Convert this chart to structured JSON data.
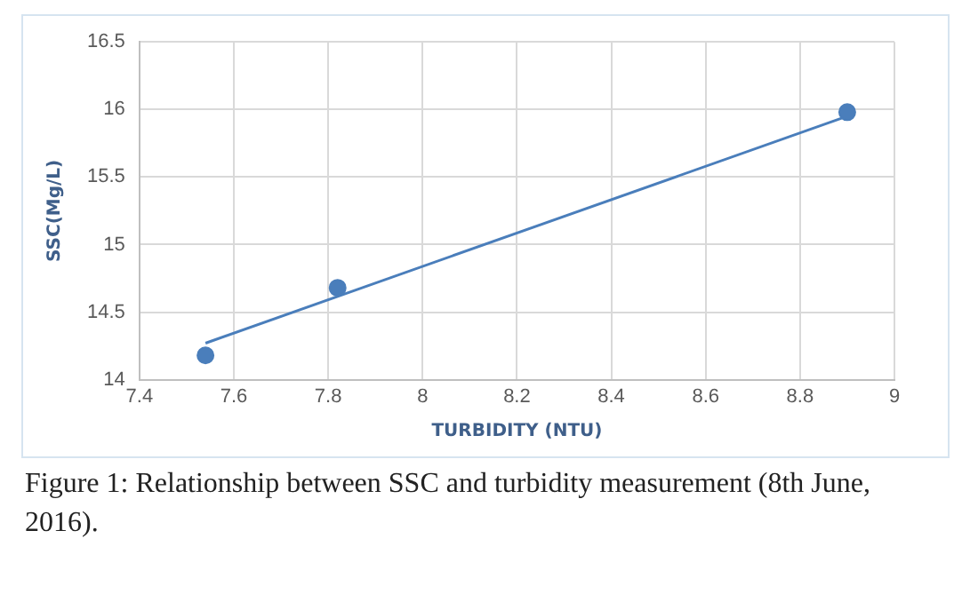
{
  "chart_data": {
    "type": "scatter",
    "xlabel": "TURBIDITY (NTU)",
    "ylabel": "SSC(Mg/L)",
    "marker": "circle",
    "grid": true,
    "series": [
      {
        "color": "#4a7ebb",
        "x": [
          7.54,
          7.82,
          8.9
        ],
        "values": [
          14.18,
          14.68,
          15.98
        ]
      },
      {
        "type": "line",
        "marker": "none",
        "color": "#4a7ebb",
        "x": [
          7.54,
          8.9
        ],
        "values": [
          14.27,
          15.95
        ]
      }
    ],
    "xlim": [
      7.4,
      9
    ],
    "xticks": [
      7.4,
      7.6,
      7.8,
      8,
      8.2,
      8.4,
      8.6,
      8.8,
      9
    ],
    "ylim": [
      14,
      16.5
    ],
    "yticks": [
      14,
      14.5,
      15,
      15.5,
      16,
      16.5
    ],
    "annotations": [
      "Figure 1: Relationship between SSC and turbidity measurement (8th June, 2016)."
    ]
  }
}
